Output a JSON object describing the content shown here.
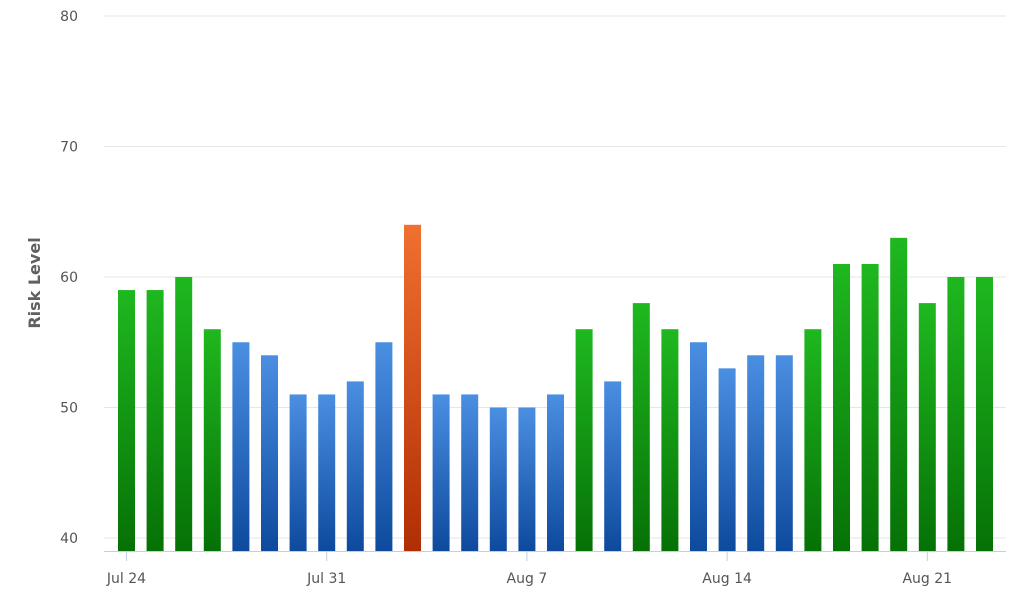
{
  "chart_data": {
    "type": "bar",
    "title": "",
    "xlabel": "",
    "ylabel": "Risk Level",
    "ylim": [
      39,
      80
    ],
    "yticks": [
      40,
      50,
      60,
      70,
      80
    ],
    "grid": true,
    "legend": "none",
    "x_tick_labels": [
      "Jul 24",
      "Jul 31",
      "Aug 7",
      "Aug 14",
      "Aug 21"
    ],
    "x_tick_dates": [
      "2023-07-24",
      "2023-07-31",
      "2023-08-07",
      "2023-08-14",
      "2023-08-21"
    ],
    "dates": [
      "2023-07-24",
      "2023-07-25",
      "2023-07-26",
      "2023-07-27",
      "2023-07-28",
      "2023-07-29",
      "2023-07-30",
      "2023-07-31",
      "2023-08-01",
      "2023-08-02",
      "2023-08-03",
      "2023-08-04",
      "2023-08-05",
      "2023-08-06",
      "2023-08-07",
      "2023-08-08",
      "2023-08-09",
      "2023-08-10",
      "2023-08-11",
      "2023-08-12",
      "2023-08-13",
      "2023-08-14",
      "2023-08-15",
      "2023-08-16",
      "2023-08-17",
      "2023-08-18",
      "2023-08-19",
      "2023-08-20",
      "2023-08-21",
      "2023-08-22",
      "2023-08-23"
    ],
    "values": [
      59,
      59,
      60,
      56,
      55,
      54,
      51,
      51,
      52,
      55,
      64,
      51,
      51,
      50,
      50,
      51,
      56,
      52,
      58,
      56,
      55,
      53,
      54,
      54,
      56,
      61,
      61,
      63,
      58,
      60,
      60
    ],
    "bar_colors": [
      "green",
      "green",
      "green",
      "green",
      "blue",
      "blue",
      "blue",
      "blue",
      "blue",
      "blue",
      "orange",
      "blue",
      "blue",
      "blue",
      "blue",
      "blue",
      "green",
      "blue",
      "green",
      "green",
      "blue",
      "blue",
      "blue",
      "blue",
      "green",
      "green",
      "green",
      "green",
      "green",
      "green",
      "green"
    ],
    "palette": {
      "green": {
        "top": "#1fb81f",
        "bottom": "#067106"
      },
      "blue": {
        "top": "#4b8fe2",
        "bottom": "#0d4a9e"
      },
      "orange": {
        "top": "#f07030",
        "bottom": "#b02e04"
      }
    },
    "grid_color": "#e6e6e6",
    "axis_color": "#c0d0e0"
  }
}
